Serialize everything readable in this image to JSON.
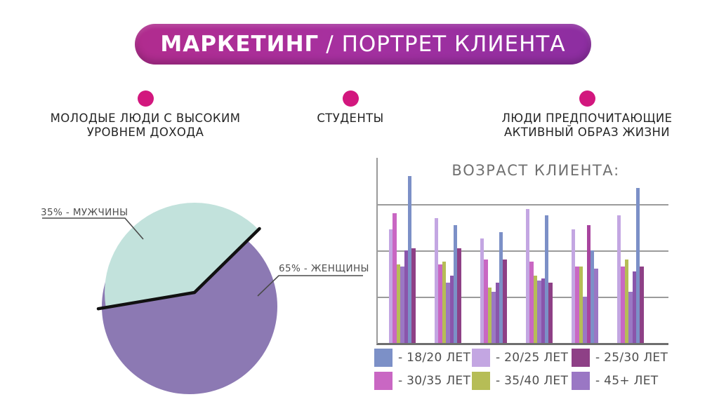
{
  "title": {
    "primary": "МАРКЕТИНГ",
    "secondary": "/ ПОРТРЕТ КЛИЕНТА",
    "pill_gradient": [
      "#b12c8e",
      "#8c2ea1"
    ],
    "text_color": "#ffffff"
  },
  "bullet_dot_color": "#d2177e",
  "bullets": [
    {
      "lines": [
        "МОЛОДЫЕ ЛЮДИ С ВЫСОКИМ",
        "УРОВНЕМ ДОХОДА"
      ]
    },
    {
      "lines": [
        "СТУДЕНТЫ",
        ""
      ]
    },
    {
      "lines": [
        "ЛЮДИ ПРЕДПОЧИТАЮЩИЕ",
        "АКТИВНЫЙ ОБРАЗ ЖИЗНИ"
      ]
    }
  ],
  "chart_data": [
    {
      "type": "pie",
      "title": "",
      "slices": [
        {
          "name": "МУЖЧИНЫ",
          "value": 35,
          "label": "35% - МУЖЧИНЫ",
          "color": "#c2e2dc",
          "exploded": true
        },
        {
          "name": "ЖЕНЩИНЫ",
          "value": 65,
          "label": "65% - ЖЕНЩИНЫ",
          "color": "#8c79b3",
          "exploded": false
        }
      ],
      "outline_color": "#111111",
      "callout_color": "#4a4a4a",
      "legend_position": "callout-labels"
    },
    {
      "type": "bar",
      "title": "ВОЗРАСТ КЛИЕНТА:",
      "xlabel": "",
      "ylabel": "",
      "ylim": [
        0,
        4
      ],
      "grid": "3 horizontal gridlines, 1 unit apart, no tick labels",
      "values_note": "values estimated in gridline units (1 unit = 1 gridline step), 6 unlabeled category groups of 7 bars",
      "axis_color": "#9b9b9b",
      "baseline_color": "#6e6e6e",
      "palette": {
        "blue": "#7c90c7",
        "lilac": "#c3a6e2",
        "plum": "#8e4086",
        "orchid": "#c967c3",
        "olive": "#b6bd56",
        "purple": "#9a77c4",
        "purpleDark": "#8a55ab",
        "plumBright": "#a8449e"
      },
      "legend": [
        {
          "hex": "#7c90c7",
          "label": "- 18/20 ЛЕТ"
        },
        {
          "hex": "#c3a6e2",
          "label": "- 20/25 ЛЕТ"
        },
        {
          "hex": "#8e4086",
          "label": "- 25/30 ЛЕТ"
        },
        {
          "hex": "#c967c3",
          "label": "- 30/35 ЛЕТ"
        },
        {
          "hex": "#b6bd56",
          "label": "- 35/40 ЛЕТ"
        },
        {
          "hex": "#9a77c4",
          "label": "- 45+ ЛЕТ"
        }
      ],
      "groups": [
        {
          "bars": [
            {
              "c": "lilac",
              "v": 2.45
            },
            {
              "c": "orchid",
              "v": 2.8
            },
            {
              "c": "olive",
              "v": 1.7
            },
            {
              "c": "purple",
              "v": 1.65
            },
            {
              "c": "purpleDark",
              "v": 2.0
            },
            {
              "c": "blue",
              "v": 3.6
            },
            {
              "c": "plum",
              "v": 2.05
            }
          ]
        },
        {
          "bars": [
            {
              "c": "lilac",
              "v": 2.7
            },
            {
              "c": "orchid",
              "v": 1.7
            },
            {
              "c": "olive",
              "v": 1.75
            },
            {
              "c": "purple",
              "v": 1.3
            },
            {
              "c": "purpleDark",
              "v": 1.45
            },
            {
              "c": "blue",
              "v": 2.55
            },
            {
              "c": "plum",
              "v": 2.05
            }
          ]
        },
        {
          "bars": [
            {
              "c": "lilac",
              "v": 2.25
            },
            {
              "c": "orchid",
              "v": 1.8
            },
            {
              "c": "olive",
              "v": 1.2
            },
            {
              "c": "purple",
              "v": 1.1
            },
            {
              "c": "purpleDark",
              "v": 1.3
            },
            {
              "c": "blue",
              "v": 2.4
            },
            {
              "c": "plum",
              "v": 1.8
            }
          ]
        },
        {
          "bars": [
            {
              "c": "lilac",
              "v": 2.9
            },
            {
              "c": "orchid",
              "v": 1.75
            },
            {
              "c": "olive",
              "v": 1.45
            },
            {
              "c": "purple",
              "v": 1.35
            },
            {
              "c": "purpleDark",
              "v": 1.4
            },
            {
              "c": "blue",
              "v": 2.75
            },
            {
              "c": "plum",
              "v": 1.3
            }
          ]
        },
        {
          "bars": [
            {
              "c": "lilac",
              "v": 2.45
            },
            {
              "c": "orchid",
              "v": 1.65
            },
            {
              "c": "olive",
              "v": 1.65
            },
            {
              "c": "purple",
              "v": 1.0
            },
            {
              "c": "plumBright",
              "v": 2.55
            },
            {
              "c": "blue",
              "v": 2.0
            },
            {
              "c": "purple",
              "v": 1.6
            }
          ]
        },
        {
          "bars": [
            {
              "c": "lilac",
              "v": 2.75
            },
            {
              "c": "orchid",
              "v": 1.65
            },
            {
              "c": "olive",
              "v": 1.8
            },
            {
              "c": "purple",
              "v": 1.1
            },
            {
              "c": "purpleDark",
              "v": 1.55
            },
            {
              "c": "blue",
              "v": 3.35
            },
            {
              "c": "plum",
              "v": 1.65
            }
          ]
        }
      ]
    }
  ]
}
